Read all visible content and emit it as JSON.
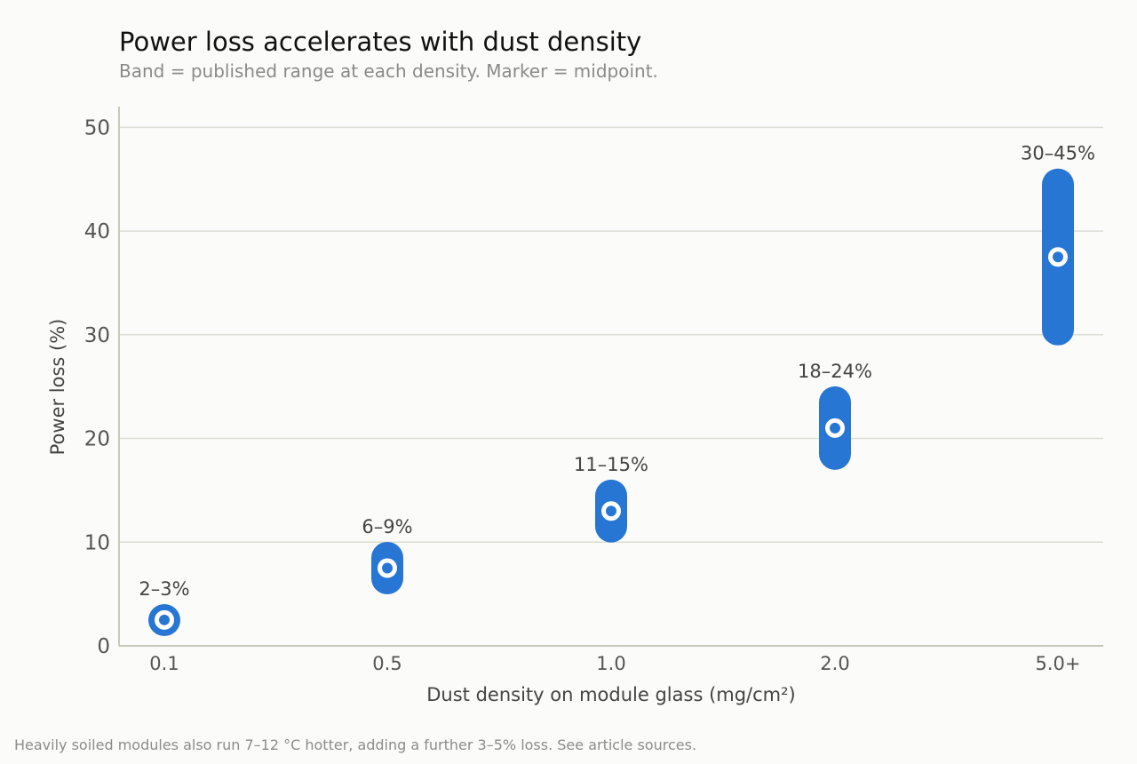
{
  "title": "Power loss accelerates with dust density",
  "subtitle": "Band = published range at each density. Marker = midpoint.",
  "footnote": "Heavily soiled modules also run 7–12 °C hotter, adding a further 3–5% loss. See article sources.",
  "colors": {
    "band": "#2876d4",
    "marker_fill": "#ffffff",
    "grid": "#dcdcd4",
    "axis": "#c8c8bc",
    "tick_text": "#555555",
    "label_text": "#444444"
  },
  "chart_data": {
    "type": "range",
    "xlabel": "Dust density on module glass (mg/cm²)",
    "ylabel": "Power loss (%)",
    "ylim": [
      0,
      52
    ],
    "yticks": [
      0,
      10,
      20,
      30,
      40,
      50
    ],
    "grid": true,
    "categories": [
      "0.1",
      "0.5",
      "1.0",
      "2.0",
      "5.0+"
    ],
    "low": [
      2,
      6,
      11,
      18,
      30
    ],
    "high": [
      3,
      9,
      15,
      24,
      45
    ],
    "midpoint": [
      2.5,
      7.5,
      13,
      21,
      37.5
    ],
    "range_labels": [
      "2–3%",
      "6–9%",
      "11–15%",
      "18–24%",
      "30–45%"
    ]
  }
}
